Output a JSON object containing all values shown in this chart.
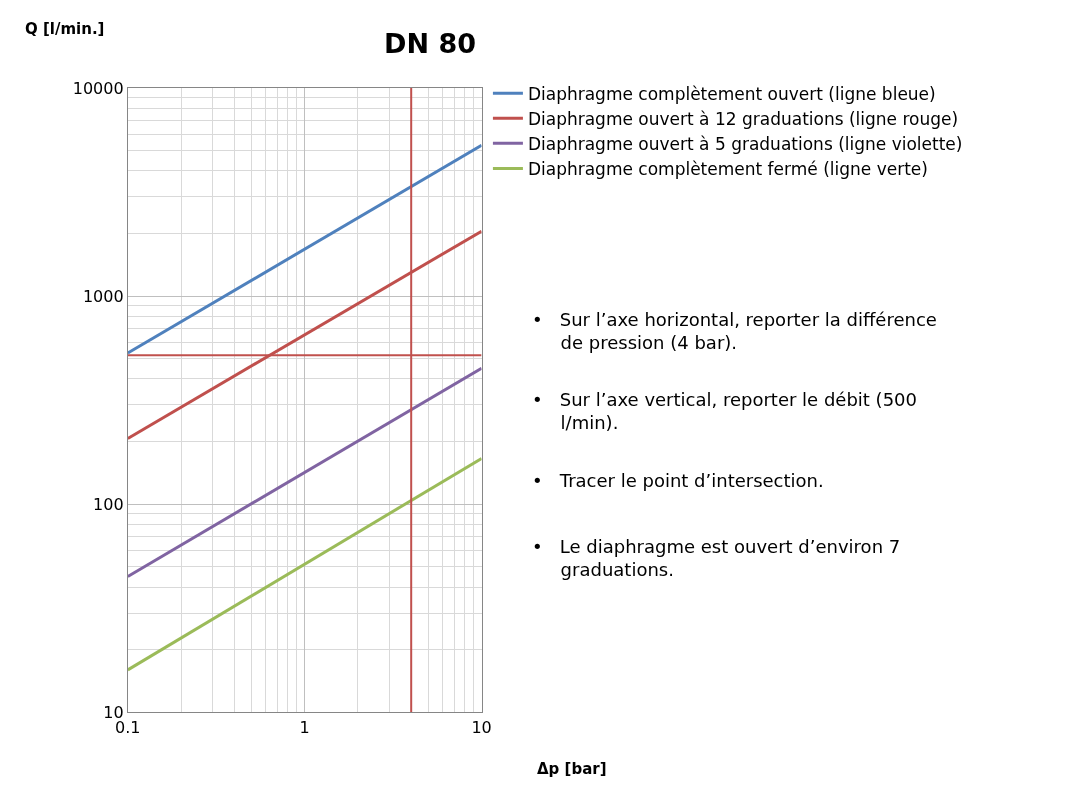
{
  "chart_data": {
    "type": "line",
    "title": "DN 80",
    "xlabel": "Δp [bar]",
    "ylabel": "Q [l/min.]",
    "log": "xy",
    "xlim": [
      0.1,
      10
    ],
    "ylim": [
      10,
      10000
    ],
    "xticks": [
      0.1,
      1,
      10
    ],
    "yticks": [
      10,
      100,
      1000,
      10000
    ],
    "grid": true,
    "legend": "top right",
    "line_style": "solid",
    "x": [
      0.1,
      10
    ],
    "series": [
      {
        "name": "Diaphragme complètement ouvert (ligne bleue)",
        "color": "#4f81bd",
        "values": [
          533,
          5300
        ]
      },
      {
        "name": "Diaphragme ouvert à 12 graduations (ligne rouge)",
        "color": "#c0504d",
        "values": [
          207,
          2050
        ]
      },
      {
        "name": "Diaphragme ouvert à 5 graduations (ligne violette)",
        "color": "#8064a2",
        "values": [
          45,
          450
        ]
      },
      {
        "name": "Diaphragme complètement fermé (ligne verte)",
        "color": "#9bbb59",
        "values": [
          16,
          166
        ]
      }
    ],
    "ref_lines": [
      {
        "axis": "y",
        "value": 520,
        "color": "#c0504d"
      },
      {
        "axis": "x",
        "value": 4,
        "color": "#c0504d"
      }
    ],
    "annotations": [
      "•   Sur l’axe horizontal, reporter la différence\n     de pression (4 bar).",
      "•   Sur l’axe vertical, reporter le débit (500\n     l/min).",
      "•   Tracer le point d’intersection.",
      "•   Le diaphragme est ouvert d’environ 7\n     graduations."
    ]
  }
}
